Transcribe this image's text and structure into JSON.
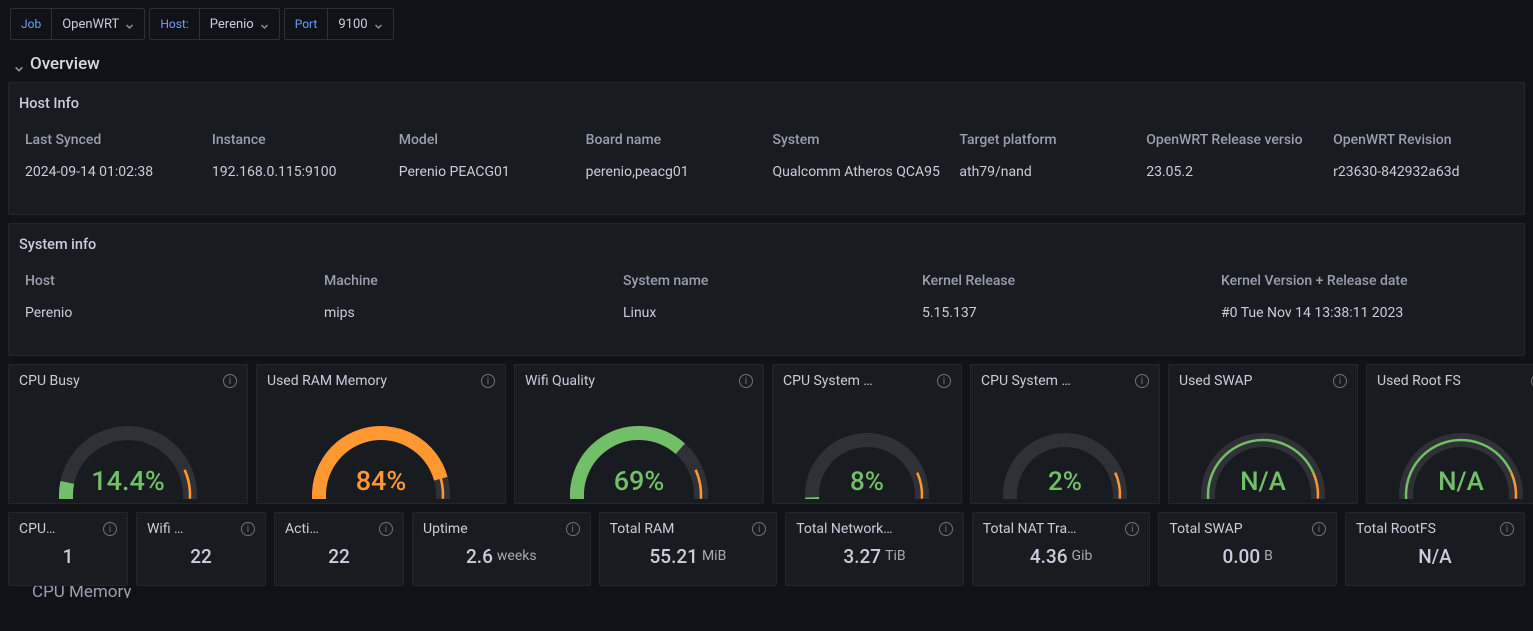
{
  "colors": {
    "bg": "#111217",
    "panel": "#181b1f",
    "border": "#24262b",
    "text": "#ccccdc",
    "muted": "#9a9fb0",
    "link": "#6e9fff",
    "track": "#2f3136",
    "green": "#73bf69",
    "green_bright": "#56a64b",
    "orange": "#ff9830",
    "red": "#f2495c"
  },
  "filters": {
    "job": {
      "label": "Job",
      "value": "OpenWRT"
    },
    "host": {
      "label": "Host:",
      "value": "Perenio"
    },
    "port": {
      "label": "Port",
      "value": "9100"
    }
  },
  "section_title": "Overview",
  "host_info": {
    "title": "Host Info",
    "columns": [
      "Last Synced",
      "Instance",
      "Model",
      "Board name",
      "System",
      "Target platform",
      "OpenWRT Release versio",
      "OpenWRT Revision"
    ],
    "row": [
      "2024-09-14 01:02:38",
      "192.168.0.115:9100",
      "Perenio PEACG01",
      "perenio,peacg01",
      "Qualcomm Atheros QCA95",
      "ath79/nand",
      "23.05.2",
      "r23630-842932a63d"
    ]
  },
  "system_info": {
    "title": "System info",
    "columns": [
      "Host",
      "Machine",
      "System name",
      "Kernel Release",
      "Kernel Version + Release date"
    ],
    "row": [
      "Perenio",
      "mips",
      "Linux",
      "5.15.137",
      "#0 Tue Nov 14 13:38:11 2023"
    ]
  },
  "gauges": [
    {
      "title": "CPU Busy",
      "value": "14.4%",
      "fraction": 0.144,
      "fill_color": "#73bf69",
      "text_color": "#73bf69",
      "na": false
    },
    {
      "title": "Used RAM Memory",
      "value": "84%",
      "fraction": 0.84,
      "fill_color": "#ff9830",
      "text_color": "#ff9830",
      "na": false
    },
    {
      "title": "Wifi Quality",
      "value": "69%",
      "fraction": 0.69,
      "fill_color": "#73bf69",
      "text_color": "#73bf69",
      "na": false
    },
    {
      "title": "CPU System …",
      "value": "8%",
      "fraction": 0.08,
      "fill_color": "#73bf69",
      "text_color": "#73bf69",
      "na": false
    },
    {
      "title": "CPU System …",
      "value": "2%",
      "fraction": 0.02,
      "fill_color": "#73bf69",
      "text_color": "#73bf69",
      "na": false
    },
    {
      "title": "Used SWAP",
      "value": "N/A",
      "fraction": 0,
      "fill_color": "#73bf69",
      "text_color": "#73bf69",
      "na": true
    },
    {
      "title": "Used Root FS",
      "value": "N/A",
      "fraction": 0,
      "fill_color": "#73bf69",
      "text_color": "#73bf69",
      "na": true
    }
  ],
  "gauge_style": {
    "thickness": 14,
    "start_angle_deg": 200,
    "end_angle_deg": -20,
    "threshold_orange_at": 0.8,
    "threshold_red_at": 0.925,
    "track_color": "#2f3136",
    "orange": "#ff9830",
    "red": "#f2495c"
  },
  "stats": [
    {
      "title": "CPU…",
      "value": "1",
      "unit": ""
    },
    {
      "title": "Wifi …",
      "value": "22",
      "unit": ""
    },
    {
      "title": "Acti…",
      "value": "22",
      "unit": ""
    },
    {
      "title": "Uptime",
      "value": "2.6",
      "unit": "weeks"
    },
    {
      "title": "Total RAM",
      "value": "55.21",
      "unit": "MiB"
    },
    {
      "title": "Total Network…",
      "value": "3.27",
      "unit": "TiB"
    },
    {
      "title": "Total NAT Tra…",
      "value": "4.36",
      "unit": "Gib"
    },
    {
      "title": "Total SWAP",
      "value": "0.00",
      "unit": "B"
    },
    {
      "title": "Total RootFS",
      "value": "N/A",
      "unit": ""
    }
  ],
  "cut_off_row_title": "CPU Memory"
}
